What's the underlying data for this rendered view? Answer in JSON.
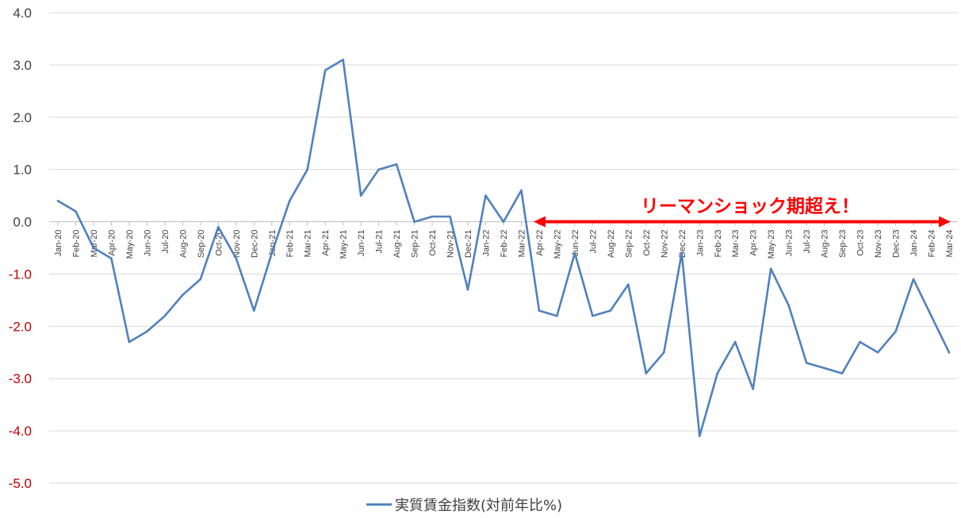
{
  "chart_data": {
    "type": "line",
    "title": "",
    "xlabel": "",
    "ylabel": "",
    "ylim": [
      -5.0,
      4.0
    ],
    "yticks": [
      "4.0",
      "3.0",
      "2.0",
      "1.0",
      "0.0",
      "-1.0",
      "-2.0",
      "-3.0",
      "-4.0",
      "-5.0"
    ],
    "negative_tick_color": "#c00000",
    "grid": true,
    "legend_position": "bottom-center",
    "categories": [
      "Jan-20",
      "Feb-20",
      "Mar-20",
      "Apr-20",
      "May-20",
      "Jun-20",
      "Jul-20",
      "Aug-20",
      "Sep-20",
      "Oct-20",
      "Nov-20",
      "Dec-20",
      "Jan-21",
      "Feb-21",
      "Mar-21",
      "Apr-21",
      "May-21",
      "Jun-21",
      "Jul-21",
      "Aug-21",
      "Sep-21",
      "Oct-21",
      "Nov-21",
      "Dec-21",
      "Jan-22",
      "Feb-22",
      "Mar-22",
      "Apr-22",
      "May-22",
      "Jun-22",
      "Jul-22",
      "Aug-22",
      "Sep-22",
      "Oct-22",
      "Nov-22",
      "Dec-22",
      "Jan-23",
      "Feb-23",
      "Mar-23",
      "Apr-23",
      "May-23",
      "Jun-23",
      "Jul-23",
      "Aug-23",
      "Sep-23",
      "Oct-23",
      "Nov-23",
      "Dec-23",
      "Jan-24",
      "Feb-24",
      "Mar-24"
    ],
    "series": [
      {
        "name": "実質賃金指数(対前年比%)",
        "color": "#4f81bd",
        "values": [
          0.4,
          0.2,
          -0.5,
          -0.7,
          -2.3,
          -2.1,
          -1.8,
          -1.4,
          -1.1,
          -0.1,
          -0.7,
          -1.7,
          -0.6,
          0.4,
          1.0,
          2.9,
          3.1,
          0.5,
          1.0,
          1.1,
          0.0,
          0.1,
          0.1,
          -1.3,
          0.5,
          0.0,
          0.6,
          -1.7,
          -1.8,
          -0.6,
          -1.8,
          -1.7,
          -1.2,
          -2.9,
          -2.5,
          -0.6,
          -4.1,
          -2.9,
          -2.3,
          -3.2,
          -0.9,
          -1.6,
          -2.7,
          -2.8,
          -2.9,
          -2.3,
          -2.5,
          -2.1,
          -1.1,
          -1.8,
          -2.5
        ]
      }
    ],
    "annotations": [
      {
        "text": "リーマンショック期超え！",
        "color": "#ff0000",
        "from": "Apr-22",
        "to": "Mar-24",
        "y": 0.0
      }
    ]
  }
}
